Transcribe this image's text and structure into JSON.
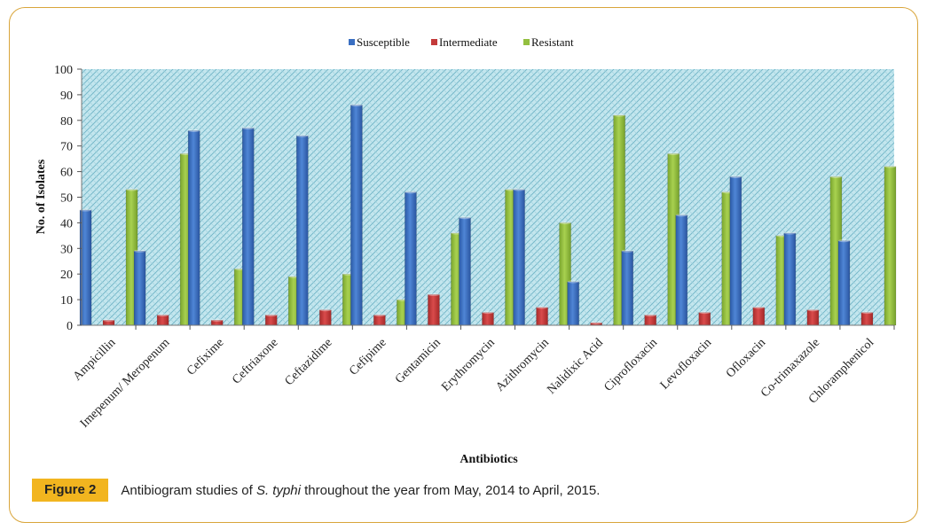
{
  "caption": {
    "figure_label": "Figure 2",
    "prefix": "Antibiogram studies of ",
    "italic": "S. typhi",
    "suffix": " throughout the year from May, 2014 to April, 2015."
  },
  "colors": {
    "susceptible": "#3a6fc2",
    "intermediate": "#c33a3a",
    "resistant": "#93bf3f",
    "plot_bg": "#bfe3ec",
    "border": "#d9a53a"
  },
  "chart_data": {
    "type": "bar",
    "title": "",
    "xlabel": "Antibiotics",
    "ylabel": "No. of Isolates",
    "ylim": [
      0,
      100
    ],
    "yticks": [
      0,
      10,
      20,
      30,
      40,
      50,
      60,
      70,
      80,
      90,
      100
    ],
    "legend_position": "top-center",
    "categories": [
      "Ampicillin",
      "Imepenum/ Meropenum",
      "Cefixime",
      "Ceftriaxone",
      "Ceftazidime",
      "Cefipime",
      "Gentamicin",
      "Erythromycin",
      "Azithromycin",
      "Nalidixic Acid",
      "Ciprofloxacin",
      "Levofloxacin",
      "Ofloxacin",
      "Co-trimaxazole",
      "Chloramphenicol"
    ],
    "series": [
      {
        "name": "Susceptible",
        "values": [
          45,
          29,
          76,
          77,
          74,
          86,
          52,
          42,
          53,
          17,
          29,
          43,
          58,
          36,
          33
        ]
      },
      {
        "name": "Intermediate",
        "values": [
          2,
          4,
          2,
          4,
          6,
          4,
          12,
          5,
          7,
          1,
          4,
          5,
          7,
          6,
          5
        ]
      },
      {
        "name": "Resistant",
        "values": [
          53,
          67,
          22,
          19,
          20,
          10,
          36,
          53,
          40,
          82,
          67,
          52,
          35,
          58,
          62
        ]
      }
    ]
  }
}
